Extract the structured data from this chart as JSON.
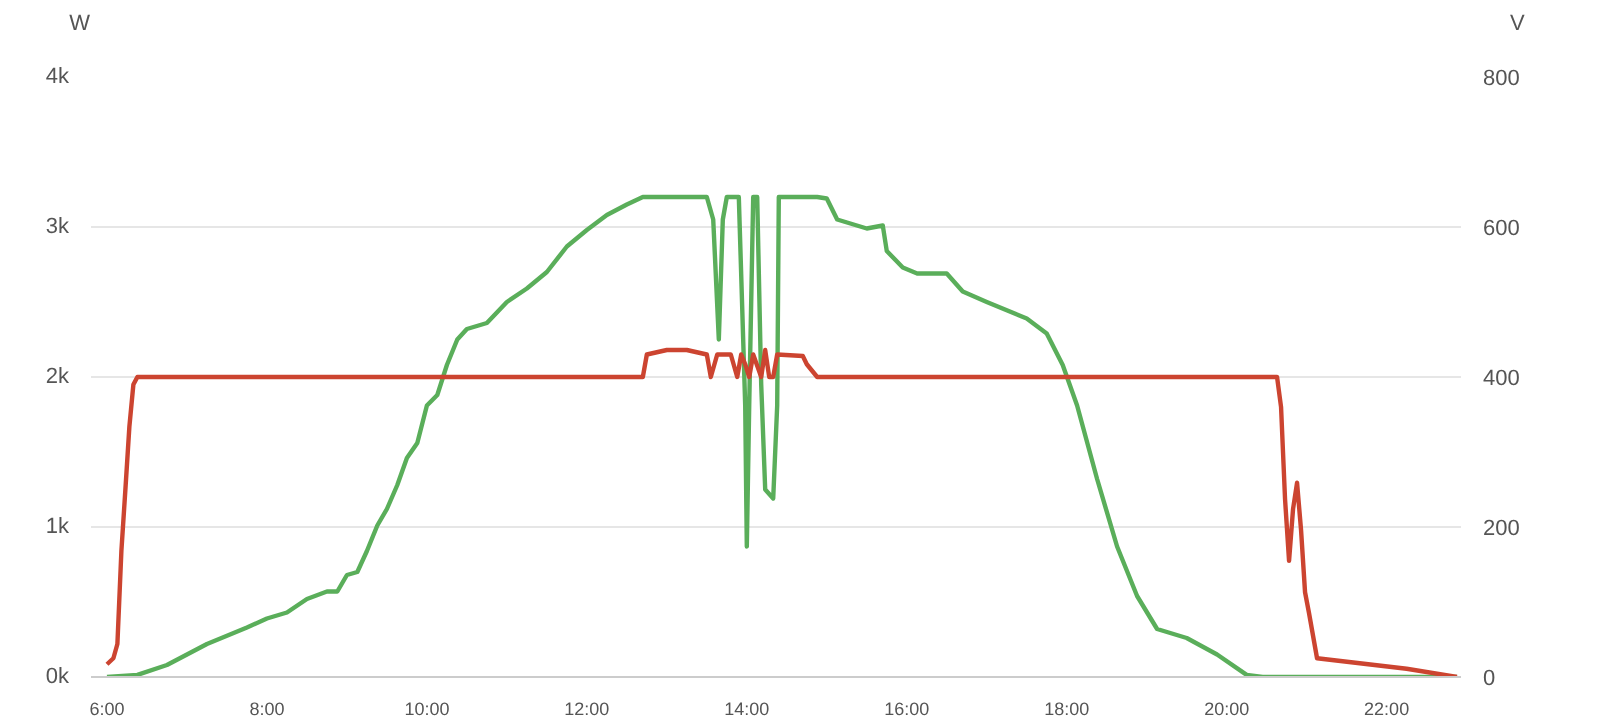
{
  "chart_data": {
    "type": "line",
    "ylabel": "W",
    "y2label": "V",
    "xlim": [
      5.8,
      22.93
    ],
    "xticks": [
      {
        "value": 6,
        "label": "6:00"
      },
      {
        "value": 8,
        "label": "8:00"
      },
      {
        "value": 10,
        "label": "10:00"
      },
      {
        "value": 12,
        "label": "12:00"
      },
      {
        "value": 14,
        "label": "14:00"
      },
      {
        "value": 16,
        "label": "16:00"
      },
      {
        "value": 18,
        "label": "18:00"
      },
      {
        "value": 20,
        "label": "20:00"
      },
      {
        "value": 22,
        "label": "22:00"
      }
    ],
    "ylim": [
      0,
      4000
    ],
    "yticks": [
      {
        "value": 0,
        "label": "0k"
      },
      {
        "value": 1000,
        "label": "1k"
      },
      {
        "value": 2000,
        "label": "2k"
      },
      {
        "value": 3000,
        "label": "3k"
      },
      {
        "value": 4000,
        "label": "4k"
      }
    ],
    "y2lim": [
      0,
      800
    ],
    "y2ticks": [
      0,
      200,
      400,
      600,
      800
    ],
    "grid": "y",
    "marker": "none",
    "line_style": "solid",
    "series": [
      {
        "color": "#5aae5a",
        "x": [
          6.0,
          6.38,
          6.75,
          7.25,
          7.75,
          8.0,
          8.25,
          8.5,
          8.75,
          8.88,
          9.0,
          9.13,
          9.25,
          9.38,
          9.5,
          9.63,
          9.75,
          9.88,
          10.0,
          10.13,
          10.25,
          10.38,
          10.5,
          10.75,
          11.0,
          11.25,
          11.5,
          11.75,
          12.0,
          12.25,
          12.5,
          12.7,
          13.5,
          13.58,
          13.65,
          13.7,
          13.75,
          13.9,
          13.98,
          14.0,
          14.03,
          14.08,
          14.13,
          14.18,
          14.23,
          14.33,
          14.38,
          14.4,
          14.88,
          15.0,
          15.13,
          15.5,
          15.7,
          15.75,
          15.95,
          16.13,
          16.5,
          16.7,
          17.0,
          17.5,
          17.75,
          17.95,
          18.13,
          18.38,
          18.63,
          18.88,
          19.13,
          19.5,
          19.88,
          20.25,
          20.45,
          22.88
        ],
        "values": [
          0,
          14,
          80,
          220,
          330,
          390,
          430,
          520,
          570,
          570,
          680,
          700,
          840,
          1010,
          1120,
          1280,
          1460,
          1560,
          1810,
          1880,
          2080,
          2250,
          2320,
          2360,
          2500,
          2590,
          2700,
          2870,
          2980,
          3080,
          3150,
          3200,
          3200,
          3050,
          2250,
          3050,
          3200,
          3200,
          1810,
          870,
          1810,
          3200,
          3200,
          1950,
          1250,
          1190,
          1810,
          3200,
          3200,
          3190,
          3050,
          2990,
          3010,
          2840,
          2730,
          2690,
          2690,
          2570,
          2500,
          2390,
          2290,
          2080,
          1810,
          1320,
          870,
          540,
          320,
          260,
          150,
          14,
          0,
          0
        ]
      },
      {
        "color": "#cc4430",
        "axis": "y2",
        "x": [
          6.0,
          6.08,
          6.13,
          6.18,
          6.23,
          6.28,
          6.33,
          6.38,
          12.7,
          12.75,
          13.0,
          13.25,
          13.5,
          13.55,
          13.63,
          13.8,
          13.88,
          13.93,
          13.98,
          14.03,
          14.08,
          14.18,
          14.23,
          14.28,
          14.33,
          14.38,
          14.7,
          14.75,
          14.88,
          15.0,
          20.63,
          20.68,
          20.73,
          20.78,
          20.83,
          20.88,
          20.93,
          20.98,
          21.03,
          21.13,
          22.25,
          22.88
        ],
        "values": [
          17,
          25,
          44,
          168,
          250,
          334,
          390,
          400,
          400,
          430,
          436,
          436,
          430,
          400,
          430,
          430,
          400,
          430,
          417,
          400,
          430,
          400,
          436,
          400,
          400,
          430,
          428,
          417,
          400,
          400,
          400,
          360,
          237,
          155,
          224,
          259,
          196,
          113,
          85,
          25,
          11,
          0
        ]
      }
    ]
  }
}
